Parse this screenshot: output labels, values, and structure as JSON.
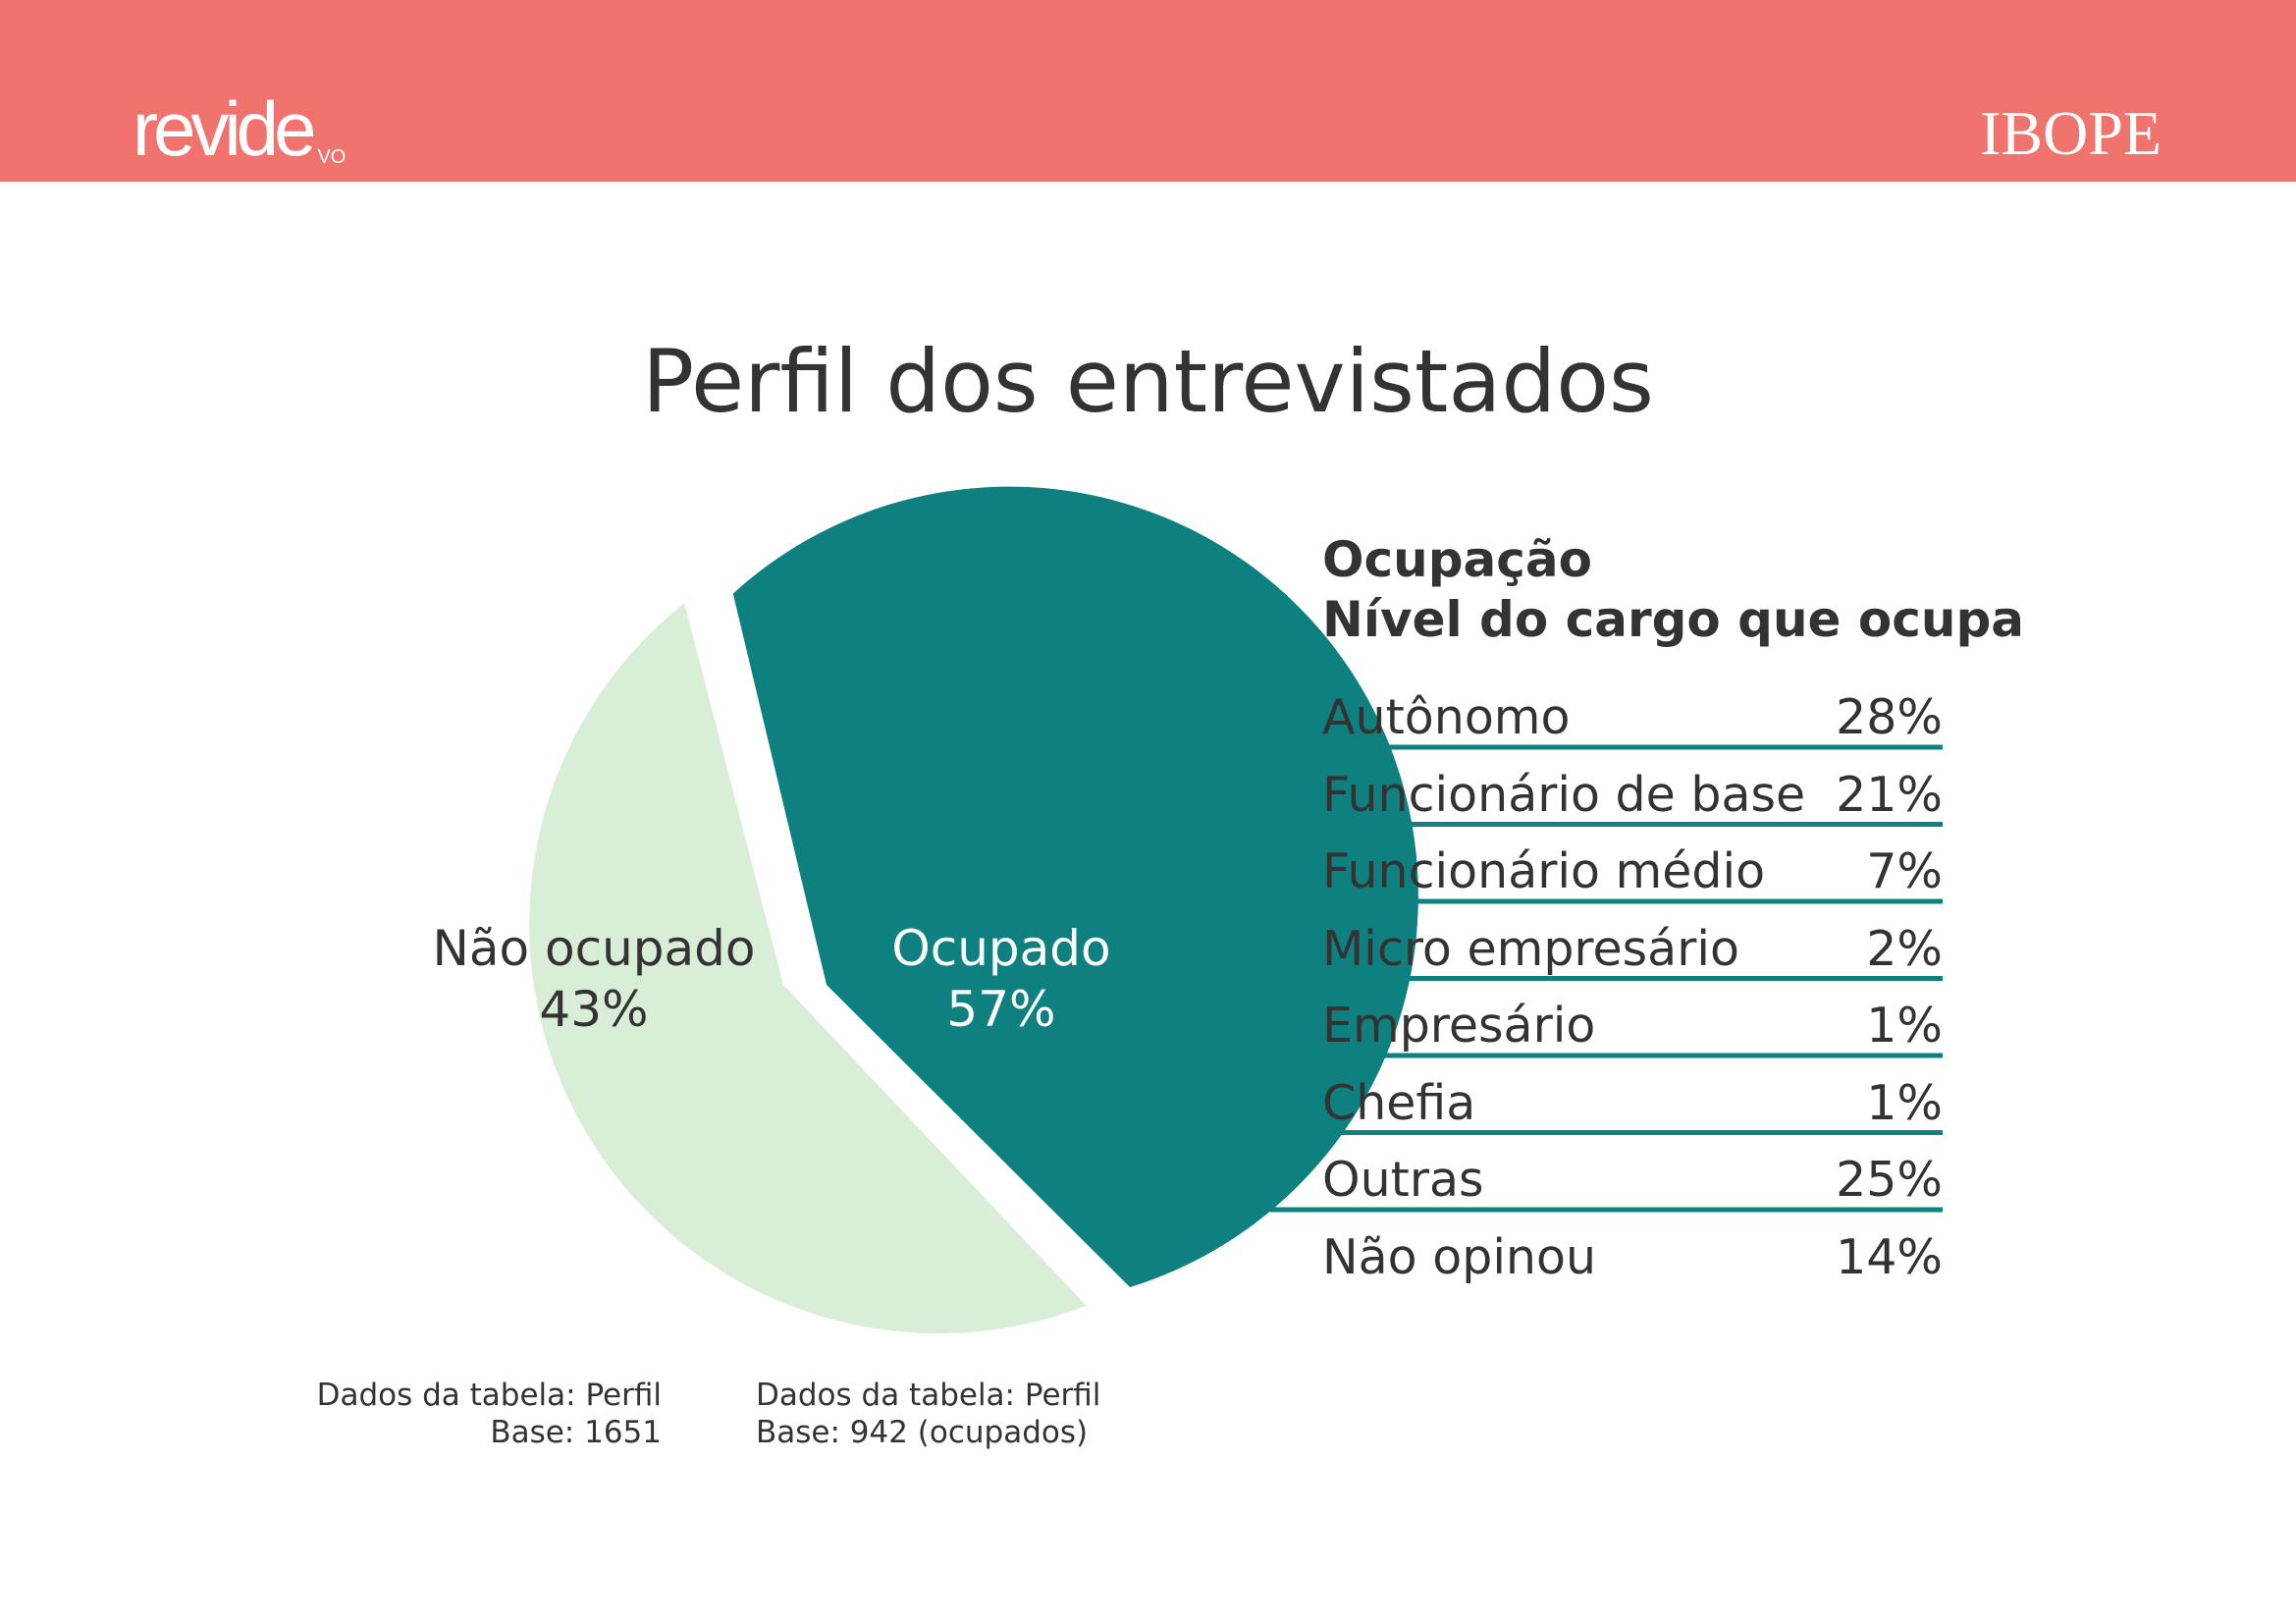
{
  "header": {
    "logo_left": "revide",
    "logo_left_sub": "VO",
    "logo_right": "IBOPE",
    "background": "#f0746d"
  },
  "page_title": "Perfil dos entrevistados",
  "chart_data": [
    {
      "type": "pie",
      "slices": [
        {
          "label": "Não ocupado",
          "value": 43,
          "value_label": "43%",
          "color": "#d9eed6"
        },
        {
          "label": "Ocupado",
          "value": 57,
          "value_label": "57%",
          "color": "#0f8080"
        }
      ],
      "sources": [
        {
          "line1": "Dados da tabela: Perfil",
          "line2": "Base: 1651"
        },
        {
          "line1": "Dados da tabela: Perfil",
          "line2": "Base: 942 (ocupados)"
        }
      ]
    },
    {
      "type": "table",
      "title_line1": "Ocupação",
      "title_line2": "Nível do cargo que ocupa",
      "rows": [
        {
          "label": "Autônomo",
          "value": "28%"
        },
        {
          "label": "Funcionário de base",
          "value": "21%"
        },
        {
          "label": "Funcionário médio",
          "value": "7%"
        },
        {
          "label": "Micro empresário",
          "value": "2%"
        },
        {
          "label": "Empresário",
          "value": "1%"
        },
        {
          "label": "Chefia",
          "value": "1%"
        },
        {
          "label": "Outras",
          "value": "25%"
        },
        {
          "label": "Não opinou",
          "value": "14%"
        }
      ],
      "line_color": "#0f8080"
    }
  ]
}
